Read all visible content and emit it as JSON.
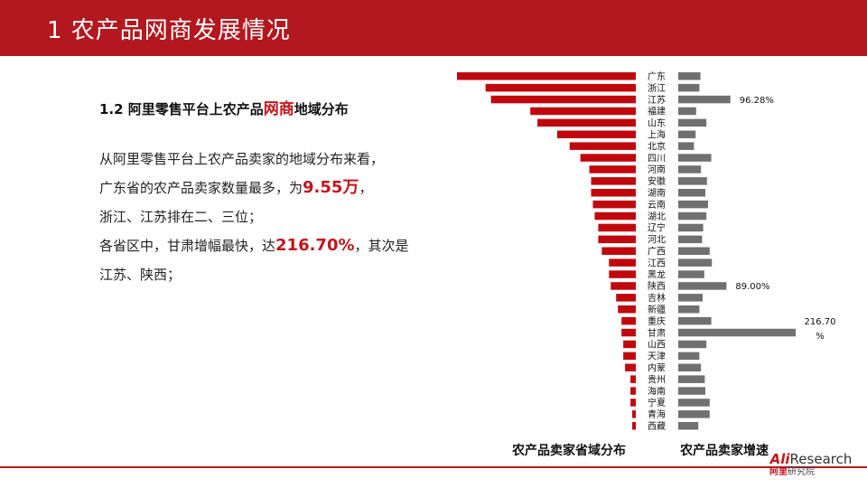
{
  "slide": {
    "title": "1 农产品网商发展情况",
    "subtitle_parts": [
      "1.2 阿里零售平台上农产品",
      "网商",
      "地域分布"
    ],
    "paragraphs": [
      [
        "从阿里零售平台上农产品卖家的地域分布来看，"
      ],
      [
        "广东省的农产品卖家数量最多，为",
        "9.55万",
        "，"
      ],
      [
        "浙江、江苏排在二、三位；"
      ],
      [
        "各省区中，甘肃增幅最快，达",
        "216.70%",
        "，其次是"
      ],
      [
        "江苏、陕西；"
      ]
    ]
  },
  "logo": {
    "ali": "Ali",
    "research": "Research",
    "cn_red": "阿里",
    "cn_rest": "研究院"
  },
  "chart_data": [
    {
      "type": "bar",
      "orientation": "horizontal",
      "title": "农产品卖家省域分布",
      "color": "#c0080d",
      "categories": [
        "广东",
        "浙江",
        "江苏",
        "福建",
        "山东",
        "上海",
        "北京",
        "四川",
        "河南",
        "安徽",
        "湖南",
        "云南",
        "湖北",
        "辽宁",
        "河北",
        "广西",
        "江西",
        "黑龙",
        "陕西",
        "吉林",
        "新疆",
        "重庆",
        "甘肃",
        "山西",
        "天津",
        "内蒙",
        "贵州",
        "海南",
        "宁夏",
        "青海",
        "西藏"
      ],
      "values": [
        100,
        84,
        81,
        59,
        55,
        44,
        37,
        31,
        26,
        25,
        25,
        24,
        23,
        21,
        21,
        19,
        15,
        15,
        14,
        11,
        10,
        8,
        8,
        7,
        7,
        6,
        3,
        3,
        3,
        2,
        2
      ],
      "note": "relative bar lengths; no axis or values printed (Guangdong = 9.55万)"
    },
    {
      "type": "bar",
      "orientation": "horizontal",
      "title": "农产品卖家增速",
      "color": "#707070",
      "categories": [
        "广东",
        "浙江",
        "江苏",
        "福建",
        "山东",
        "上海",
        "北京",
        "四川",
        "河南",
        "安徽",
        "湖南",
        "云南",
        "湖北",
        "辽宁",
        "河北",
        "广西",
        "江西",
        "黑龙",
        "陕西",
        "吉林",
        "新疆",
        "重庆",
        "甘肃",
        "山西",
        "天津",
        "内蒙",
        "贵州",
        "海南",
        "宁夏",
        "青海",
        "西藏"
      ],
      "values": [
        41,
        39,
        96.28,
        33,
        52,
        32,
        29,
        61,
        42,
        53,
        50,
        55,
        52,
        46,
        44,
        58,
        62,
        48,
        89,
        45,
        39,
        61,
        216.7,
        52,
        39,
        42,
        49,
        50,
        58,
        58,
        37
      ],
      "unit": "%",
      "data_labels": [
        {
          "category": "江苏",
          "text": "96.28%"
        },
        {
          "category": "陕西",
          "text": "89.00%"
        },
        {
          "category": "甘肃",
          "lines": [
            "216.70",
            "%"
          ]
        }
      ]
    }
  ]
}
